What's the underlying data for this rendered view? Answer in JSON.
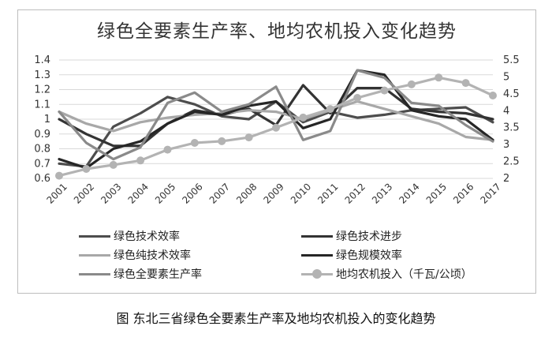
{
  "caption": "图    东北三省绿色全要素生产率及地均农机投入的变化趋势",
  "chart_data": {
    "type": "line",
    "title": "绿色全要素生产率、地均农机投入变化趋势",
    "categories": [
      "2001",
      "2002",
      "2003",
      "2004",
      "2005",
      "2006",
      "2007",
      "2008",
      "2009",
      "2010",
      "2011",
      "2012",
      "2013",
      "2014",
      "2015",
      "2016",
      "2017"
    ],
    "y_left": {
      "ticks": [
        "0.6",
        "0.7",
        "0.8",
        "0.9",
        "1",
        "1.1",
        "1.2",
        "1.3",
        "1.4"
      ],
      "lim": [
        0.6,
        1.4
      ]
    },
    "y_right": {
      "ticks": [
        "2",
        "2.5",
        "3",
        "3.5",
        "4",
        "4.5",
        "5",
        "5.5"
      ],
      "lim": [
        2,
        5.5
      ]
    },
    "grid": true,
    "legend_position": "bottom",
    "series": [
      {
        "name": "绿色技术效率",
        "axis": "left",
        "color": "#4d4d4d",
        "marker": false,
        "values": [
          0.7,
          0.68,
          0.95,
          1.04,
          1.15,
          1.1,
          1.02,
          1.0,
          1.12,
          0.98,
          1.05,
          1.01,
          1.03,
          1.06,
          1.07,
          1.08,
          0.98
        ]
      },
      {
        "name": "绿色技术进步",
        "axis": "left",
        "color": "#333333",
        "marker": false,
        "values": [
          1.0,
          0.9,
          0.82,
          0.82,
          0.97,
          1.06,
          1.03,
          1.07,
          0.96,
          1.23,
          1.04,
          1.21,
          1.21,
          1.07,
          1.05,
          1.04,
          1.0
        ]
      },
      {
        "name": "绿色纯技术效率",
        "axis": "left",
        "color": "#a8a8a8",
        "marker": false,
        "values": [
          1.05,
          0.97,
          0.92,
          0.98,
          1.01,
          1.03,
          1.04,
          1.06,
          1.05,
          1.0,
          1.06,
          1.12,
          1.07,
          1.02,
          0.97,
          0.88,
          0.86
        ]
      },
      {
        "name": "绿色规模效率",
        "axis": "left",
        "color": "#262626",
        "marker": false,
        "values": [
          0.73,
          0.67,
          0.8,
          0.85,
          0.97,
          1.05,
          1.03,
          1.09,
          1.12,
          0.94,
          1.0,
          1.33,
          1.3,
          1.06,
          1.02,
          1.0,
          0.86
        ]
      },
      {
        "name": "绿色全要素生产率",
        "axis": "left",
        "color": "#8a8a8a",
        "marker": false,
        "values": [
          1.05,
          0.84,
          0.73,
          0.81,
          1.11,
          1.18,
          1.05,
          1.1,
          1.22,
          0.86,
          0.92,
          1.33,
          1.28,
          1.11,
          1.09,
          0.96,
          0.85
        ]
      },
      {
        "name": "地均农机投入（千瓦/公顷）",
        "axis": "right",
        "color": "#b3b3b3",
        "marker": true,
        "values": [
          2.08,
          2.28,
          2.4,
          2.53,
          2.85,
          3.05,
          3.1,
          3.21,
          3.5,
          3.8,
          4.05,
          4.38,
          4.6,
          4.78,
          4.98,
          4.82,
          4.45
        ]
      }
    ]
  }
}
